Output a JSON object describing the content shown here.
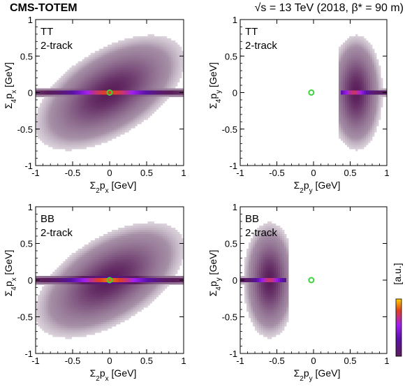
{
  "header": {
    "experiment": "CMS-TOTEM",
    "conditions": "√s = 13 TeV (2018, β* = 90 m)"
  },
  "colorbar": {
    "label": "[a.u.]",
    "scale": "log"
  },
  "colors": {
    "marker": "#3cd23c",
    "cmap": [
      "#ffffff",
      "#a58fa6",
      "#5a1e5a",
      "#5a10a8",
      "#a020f0",
      "#e04020",
      "#ffd000"
    ]
  },
  "chart_data": [
    {
      "type": "heatmap",
      "panel": "top-left",
      "label": [
        "TT",
        "2-track"
      ],
      "xlabel_parts": [
        "Σ",
        "2",
        "p",
        "x",
        " [GeV]"
      ],
      "ylabel_parts": [
        "Σ",
        "4",
        "p",
        "x",
        " [GeV]"
      ],
      "xlim": [
        -1,
        1
      ],
      "ylim": [
        -1,
        1
      ],
      "xticks": [
        -1,
        -0.5,
        0,
        0.5,
        1
      ],
      "yticks": [
        -1,
        -0.5,
        0,
        0.5,
        1
      ],
      "tick_labels": [
        "-1",
        "-0.5",
        "0",
        "0.5",
        "1"
      ],
      "components": [
        {
          "kind": "band",
          "x_center": 0.0,
          "y_center": 0.0,
          "x_halfwidth": 1.0,
          "y_sigma": 0.025,
          "peak": 1.0
        },
        {
          "kind": "diffuse",
          "x_center": 0.0,
          "y_center": 0.0,
          "x_sigma": 0.45,
          "y_sigma": 0.35,
          "correlation": 0.55,
          "peak": 0.25
        }
      ],
      "marker": {
        "x": 0.0,
        "y": 0.0
      }
    },
    {
      "type": "heatmap",
      "panel": "top-right",
      "label": [
        "TT",
        "2-track"
      ],
      "xlabel_parts": [
        "Σ",
        "2",
        "p",
        "y",
        " [GeV]"
      ],
      "ylabel_parts": [
        "Σ",
        "4",
        "p",
        "y",
        " [GeV]"
      ],
      "xlim": [
        -1,
        1
      ],
      "ylim": [
        -1,
        1
      ],
      "xticks": [
        -1,
        -0.5,
        0,
        0.5,
        1
      ],
      "yticks": [
        -1,
        -0.5,
        0,
        0.5,
        1
      ],
      "tick_labels": [
        "-1",
        "-0.5",
        "0",
        "0.5",
        "1"
      ],
      "components": [
        {
          "kind": "band",
          "x_range": [
            0.38,
            1.0
          ],
          "x_center": 0.55,
          "y_center": 0.0,
          "y_sigma": 0.02,
          "peak": 1.0
        },
        {
          "kind": "diffuse",
          "x_range": [
            0.35,
            0.95
          ],
          "x_center": 0.58,
          "y_center": 0.0,
          "x_sigma": 0.16,
          "y_sigma": 0.35,
          "correlation": 0.0,
          "peak": 0.25
        }
      ],
      "marker": {
        "x": -0.03,
        "y": 0.0
      }
    },
    {
      "type": "heatmap",
      "panel": "bottom-left",
      "label": [
        "BB",
        "2-track"
      ],
      "xlabel_parts": [
        "Σ",
        "2",
        "p",
        "x",
        " [GeV]"
      ],
      "ylabel_parts": [
        "Σ",
        "4",
        "p",
        "x",
        " [GeV]"
      ],
      "xlim": [
        -1,
        1
      ],
      "ylim": [
        -1,
        1
      ],
      "xticks": [
        -1,
        -0.5,
        0,
        0.5,
        1
      ],
      "yticks": [
        -1,
        -0.5,
        0,
        0.5,
        1
      ],
      "tick_labels": [
        "-1",
        "-0.5",
        "0",
        "0.5",
        "1"
      ],
      "components": [
        {
          "kind": "band",
          "x_center": 0.0,
          "y_center": 0.0,
          "x_halfwidth": 1.0,
          "y_sigma": 0.03,
          "peak": 1.0
        },
        {
          "kind": "diffuse",
          "x_center": 0.0,
          "y_center": 0.0,
          "x_sigma": 0.45,
          "y_sigma": 0.35,
          "correlation": 0.55,
          "peak": 0.25
        }
      ],
      "marker": {
        "x": 0.0,
        "y": 0.0
      }
    },
    {
      "type": "heatmap",
      "panel": "bottom-right",
      "label": [
        "BB",
        "2-track"
      ],
      "xlabel_parts": [
        "Σ",
        "2",
        "p",
        "y",
        " [GeV]"
      ],
      "ylabel_parts": [
        "Σ",
        "4",
        "p",
        "y",
        " [GeV]"
      ],
      "xlim": [
        -1,
        1
      ],
      "ylim": [
        -1,
        1
      ],
      "xticks": [
        -1,
        -0.5,
        0,
        0.5,
        1
      ],
      "yticks": [
        -1,
        -0.5,
        0,
        0.5,
        1
      ],
      "tick_labels": [
        "-1",
        "-0.5",
        "0",
        "0.5",
        "1"
      ],
      "components": [
        {
          "kind": "band",
          "x_range": [
            -1.0,
            -0.38
          ],
          "x_center": -0.6,
          "y_center": 0.0,
          "y_sigma": 0.02,
          "peak": 1.0
        },
        {
          "kind": "diffuse",
          "x_range": [
            -0.95,
            -0.35
          ],
          "x_center": -0.6,
          "y_center": 0.0,
          "x_sigma": 0.16,
          "y_sigma": 0.35,
          "correlation": 0.0,
          "peak": 0.25
        }
      ],
      "marker": {
        "x": -0.03,
        "y": 0.0
      }
    }
  ]
}
